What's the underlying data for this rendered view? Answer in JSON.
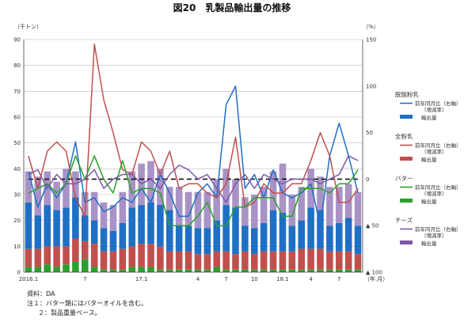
{
  "chart_data": {
    "type": "bar",
    "title": "図20　乳製品輸出量の推移",
    "left_unit": "（千トン）",
    "right_unit": "（%）",
    "xlabel": "（年.月）",
    "ylim_left": [
      0,
      90
    ],
    "ylim_right": [
      -100,
      150
    ],
    "y_ticks_left": [
      "0",
      "10",
      "20",
      "30",
      "40",
      "50",
      "60",
      "70",
      "80",
      "90"
    ],
    "y_ticks_right": [
      {
        "value": 150,
        "label": "150"
      },
      {
        "value": 100,
        "label": "100"
      },
      {
        "value": 50,
        "label": "50"
      },
      {
        "value": 0,
        "label": "0"
      },
      {
        "value": -50,
        "label": "▲ 50"
      },
      {
        "value": -100,
        "label": "▲ 100"
      }
    ],
    "x_tick_labels": [
      {
        "index": 0,
        "label": "2016.1"
      },
      {
        "index": 6,
        "label": "7"
      },
      {
        "index": 12,
        "label": "17.1"
      },
      {
        "index": 18,
        "label": "4"
      },
      {
        "index": 21,
        "label": "7"
      },
      {
        "index": 24,
        "label": "10"
      },
      {
        "index": 27,
        "label": "18.1"
      },
      {
        "index": 30,
        "label": "4"
      },
      {
        "index": 33,
        "label": "7"
      }
    ],
    "stacked_bars": [
      {
        "name": "輸出量",
        "group": "バター",
        "color": "#2ca02c",
        "values": [
          2,
          2,
          3,
          2,
          3,
          4,
          5,
          2,
          1,
          1,
          1,
          2,
          2,
          2,
          1,
          1,
          1,
          1,
          1,
          1,
          2,
          1,
          1,
          1,
          1,
          1,
          1,
          1,
          1,
          1,
          1,
          1,
          1,
          1,
          1,
          1
        ]
      },
      {
        "name": "輸出量",
        "group": "全粉乳",
        "color": "#c0504d",
        "values": [
          7,
          7,
          7,
          8,
          7,
          9,
          7,
          9,
          7,
          7,
          8,
          8,
          9,
          9,
          9,
          7,
          7,
          7,
          6,
          6,
          6,
          7,
          6,
          7,
          6,
          7,
          7,
          7,
          7,
          8,
          8,
          8,
          7,
          7,
          7,
          6
        ]
      },
      {
        "name": "輸出量",
        "group": "脱脂粉乳",
        "color": "#1f6fc5",
        "values": [
          18,
          13,
          16,
          14,
          15,
          16,
          10,
          9,
          9,
          8,
          10,
          15,
          15,
          16,
          16,
          16,
          10,
          10,
          10,
          10,
          12,
          18,
          18,
          10,
          10,
          11,
          16,
          15,
          10,
          11,
          16,
          15,
          10,
          11,
          13,
          11
        ]
      },
      {
        "name": "輸出量",
        "group": "チーズ",
        "color": "#a993c6",
        "values": [
          12,
          15,
          13,
          11,
          15,
          10,
          9,
          11,
          10,
          10,
          12,
          14,
          16,
          16,
          14,
          9,
          15,
          13,
          14,
          14,
          16,
          14,
          11,
          11,
          13,
          14,
          15,
          19,
          12,
          13,
          15,
          13,
          15,
          14,
          13,
          13
        ]
      }
    ],
    "line_series": [
      {
        "name": "前年同月比（右軸）（増減率）",
        "group": "脱脂粉乳",
        "color": "#1f6fc5",
        "values": [
          8,
          -30,
          -5,
          -20,
          -5,
          40,
          -25,
          -20,
          -35,
          -30,
          -20,
          -25,
          -10,
          -25,
          5,
          -15,
          -40,
          -40,
          -15,
          -5,
          -20,
          80,
          100,
          -10,
          5,
          -20,
          10,
          -15,
          -20,
          -15,
          -5,
          -50,
          25,
          60,
          25,
          -15
        ]
      },
      {
        "name": "前年同月比（右軸）（増減率）",
        "group": "全粉乳",
        "color": "#c0504d",
        "values": [
          25,
          -10,
          30,
          40,
          30,
          -20,
          -40,
          145,
          85,
          50,
          10,
          5,
          40,
          30,
          5,
          30,
          -10,
          -5,
          -5,
          -15,
          -20,
          -5,
          45,
          -30,
          -25,
          -5,
          -15,
          -15,
          -5,
          -5,
          20,
          50,
          25,
          -25,
          -25,
          -10
        ]
      },
      {
        "name": "前年同月比（右軸）（増減率）",
        "group": "バター",
        "color": "#2ca02c",
        "values": [
          -15,
          -10,
          -5,
          -15,
          -5,
          25,
          0,
          25,
          0,
          -15,
          20,
          -15,
          -10,
          -10,
          -15,
          -50,
          -50,
          -50,
          -40,
          -25,
          -50,
          -50,
          -30,
          -30,
          -20,
          -20,
          -20,
          -40,
          -40,
          -10,
          -10,
          -10,
          -15,
          -5,
          -5,
          10
        ]
      },
      {
        "name": "前年同月比（右軸）（増減率）",
        "group": "チーズ",
        "color": "#7e57a8",
        "values": [
          5,
          10,
          -10,
          5,
          -5,
          -5,
          0,
          10,
          -10,
          0,
          5,
          5,
          -5,
          0,
          -10,
          5,
          15,
          10,
          0,
          5,
          -10,
          -25,
          -5,
          5,
          -10,
          5,
          0,
          -5,
          0,
          0,
          0,
          -5,
          0,
          5,
          25,
          20
        ]
      }
    ],
    "reference_line": {
      "value": 0,
      "style": "dashed",
      "color": "#111111"
    }
  },
  "legend": {
    "groups": [
      {
        "label": "脱脂粉乳",
        "color": "#1f6fc5",
        "line_label": "前年同月比（右軸）",
        "line_sub": "（増減率）",
        "bar_label": "輸出量"
      },
      {
        "label": "全粉乳",
        "color": "#c0504d",
        "line_label": "前年同月比（右軸）",
        "line_sub": "（増減率）",
        "bar_label": "輸出量"
      },
      {
        "label": "バター",
        "color": "#2ca02c",
        "line_label": "前年同月比（右軸）",
        "line_sub": "（増減率）",
        "bar_label": "輸出量"
      },
      {
        "label": "チーズ",
        "color": "#7e57a8",
        "line_label": "前年同月比（右軸）",
        "line_sub": "（増減率）",
        "bar_label": "輸出量"
      }
    ]
  },
  "notes": {
    "source": "資料：DA",
    "note1": "注１：バター類にはバターオイルを含む。",
    "note2": "２：製品重量ベース。"
  }
}
